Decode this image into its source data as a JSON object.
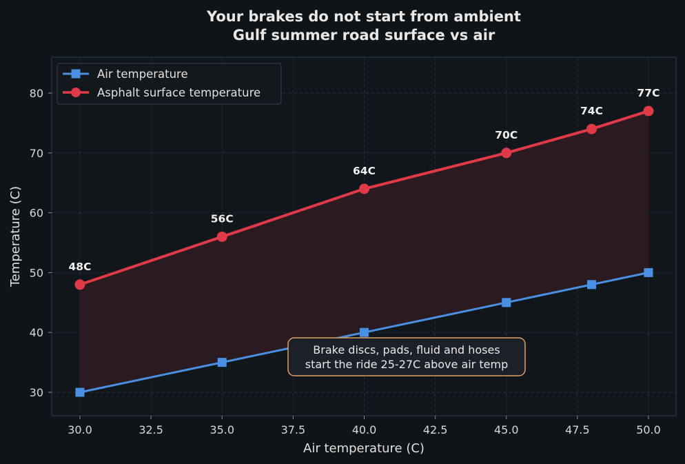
{
  "colors": {
    "background": "#0f1418",
    "air": "#4a90e2",
    "asphalt": "#e03a48",
    "fill": "#2e1a22",
    "annotation_border": "#e0a060",
    "annotation_bg": "#1c2128"
  },
  "chart_data": {
    "type": "line",
    "title_line1": "Your brakes do not start from ambient",
    "title_line2": "Gulf summer road surface vs air",
    "xlabel": "Air temperature (C)",
    "ylabel": "Temperature (C)",
    "xlim": [
      29,
      51
    ],
    "ylim": [
      26,
      86
    ],
    "xticks": [
      30.0,
      32.5,
      35.0,
      37.5,
      40.0,
      42.5,
      45.0,
      47.5,
      50.0
    ],
    "xtick_labels": [
      "30.0",
      "32.5",
      "35.0",
      "37.5",
      "40.0",
      "42.5",
      "45.0",
      "47.5",
      "50.0"
    ],
    "yticks": [
      30,
      40,
      50,
      60,
      70,
      80
    ],
    "ytick_labels": [
      "30",
      "40",
      "50",
      "60",
      "70",
      "80"
    ],
    "grid": true,
    "legend_position": "top-left",
    "x": [
      30,
      35,
      40,
      45,
      48,
      50
    ],
    "series": [
      {
        "name": "Air temperature",
        "marker": "square",
        "values": [
          30,
          35,
          40,
          45,
          48,
          50
        ]
      },
      {
        "name": "Asphalt surface temperature",
        "marker": "circle",
        "values": [
          48,
          56,
          64,
          70,
          74,
          77
        ]
      }
    ],
    "data_labels": [
      "48C",
      "56C",
      "64C",
      "70C",
      "74C",
      "77C"
    ],
    "annotation": {
      "line1": "Brake discs, pads, fluid and hoses",
      "line2": "start the ride 25-27C above air temp"
    }
  }
}
